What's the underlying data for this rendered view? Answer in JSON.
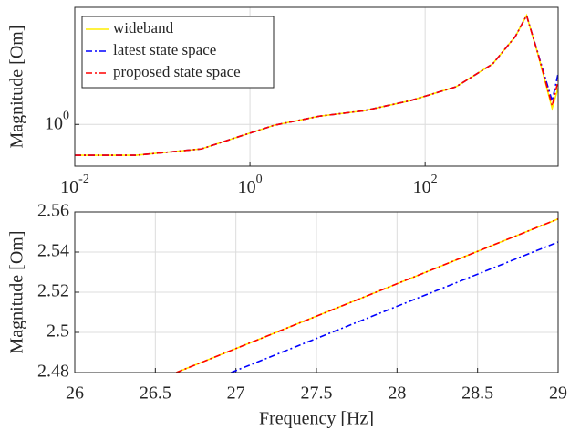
{
  "chart_data": [
    {
      "type": "line",
      "ylabel": "Magnitude [Om]",
      "xscale": "log",
      "yscale": "log",
      "grid": true,
      "legend": "upper left",
      "xlim": [
        0.01,
        3300
      ],
      "ylim": [
        0.35,
        19
      ],
      "xticks": [
        {
          "value": 0.01,
          "label": "10^-2"
        },
        {
          "value": 1,
          "label": "10^0"
        },
        {
          "value": 100,
          "label": "10^2"
        }
      ],
      "yticks": [
        {
          "value": 1,
          "label": "10^0"
        }
      ],
      "x": [
        0.01,
        0.05,
        0.28,
        0.7,
        1.9,
        6.2,
        20,
        68,
        224,
        590,
        1070,
        1440,
        1950,
        2820,
        3300
      ],
      "series": [
        {
          "name": "wideband",
          "color": "#ffee00",
          "linestyle": "-",
          "values": [
            0.46,
            0.46,
            0.54,
            0.72,
            0.98,
            1.23,
            1.41,
            1.82,
            2.57,
            4.57,
            9.1,
            15.5,
            5.75,
            1.5,
            2.5
          ]
        },
        {
          "name": "latest state space",
          "color": "#0000ff",
          "linestyle": "-.",
          "values": [
            0.46,
            0.46,
            0.54,
            0.72,
            0.98,
            1.23,
            1.41,
            1.82,
            2.57,
            4.57,
            9.1,
            15.5,
            5.9,
            1.8,
            3.6
          ]
        },
        {
          "name": "proposed state space",
          "color": "#ff0000",
          "linestyle": "-.",
          "values": [
            0.46,
            0.46,
            0.54,
            0.72,
            0.98,
            1.23,
            1.41,
            1.82,
            2.57,
            4.57,
            9.1,
            15.5,
            5.8,
            1.6,
            3.0
          ]
        }
      ]
    },
    {
      "type": "line",
      "xlabel": "Frequency [Hz]",
      "ylabel": "Magnitude [Om]",
      "grid": true,
      "xlim": [
        26,
        29
      ],
      "ylim": [
        2.48,
        2.56
      ],
      "xticks": [
        26,
        26.5,
        27,
        27.5,
        28,
        28.5,
        29
      ],
      "yticks": [
        2.48,
        2.5,
        2.52,
        2.54,
        2.56
      ],
      "series": [
        {
          "name": "wideband",
          "color": "#ffee00",
          "linestyle": "-",
          "x": [
            26.63,
            29
          ],
          "values": [
            2.48,
            2.5565
          ]
        },
        {
          "name": "latest state space",
          "color": "#0000ff",
          "linestyle": "-.",
          "x": [
            26.97,
            29
          ],
          "values": [
            2.48,
            2.545
          ]
        },
        {
          "name": "proposed state space",
          "color": "#ff0000",
          "linestyle": "-.",
          "x": [
            26.63,
            29
          ],
          "values": [
            2.48,
            2.5565
          ]
        }
      ]
    }
  ]
}
